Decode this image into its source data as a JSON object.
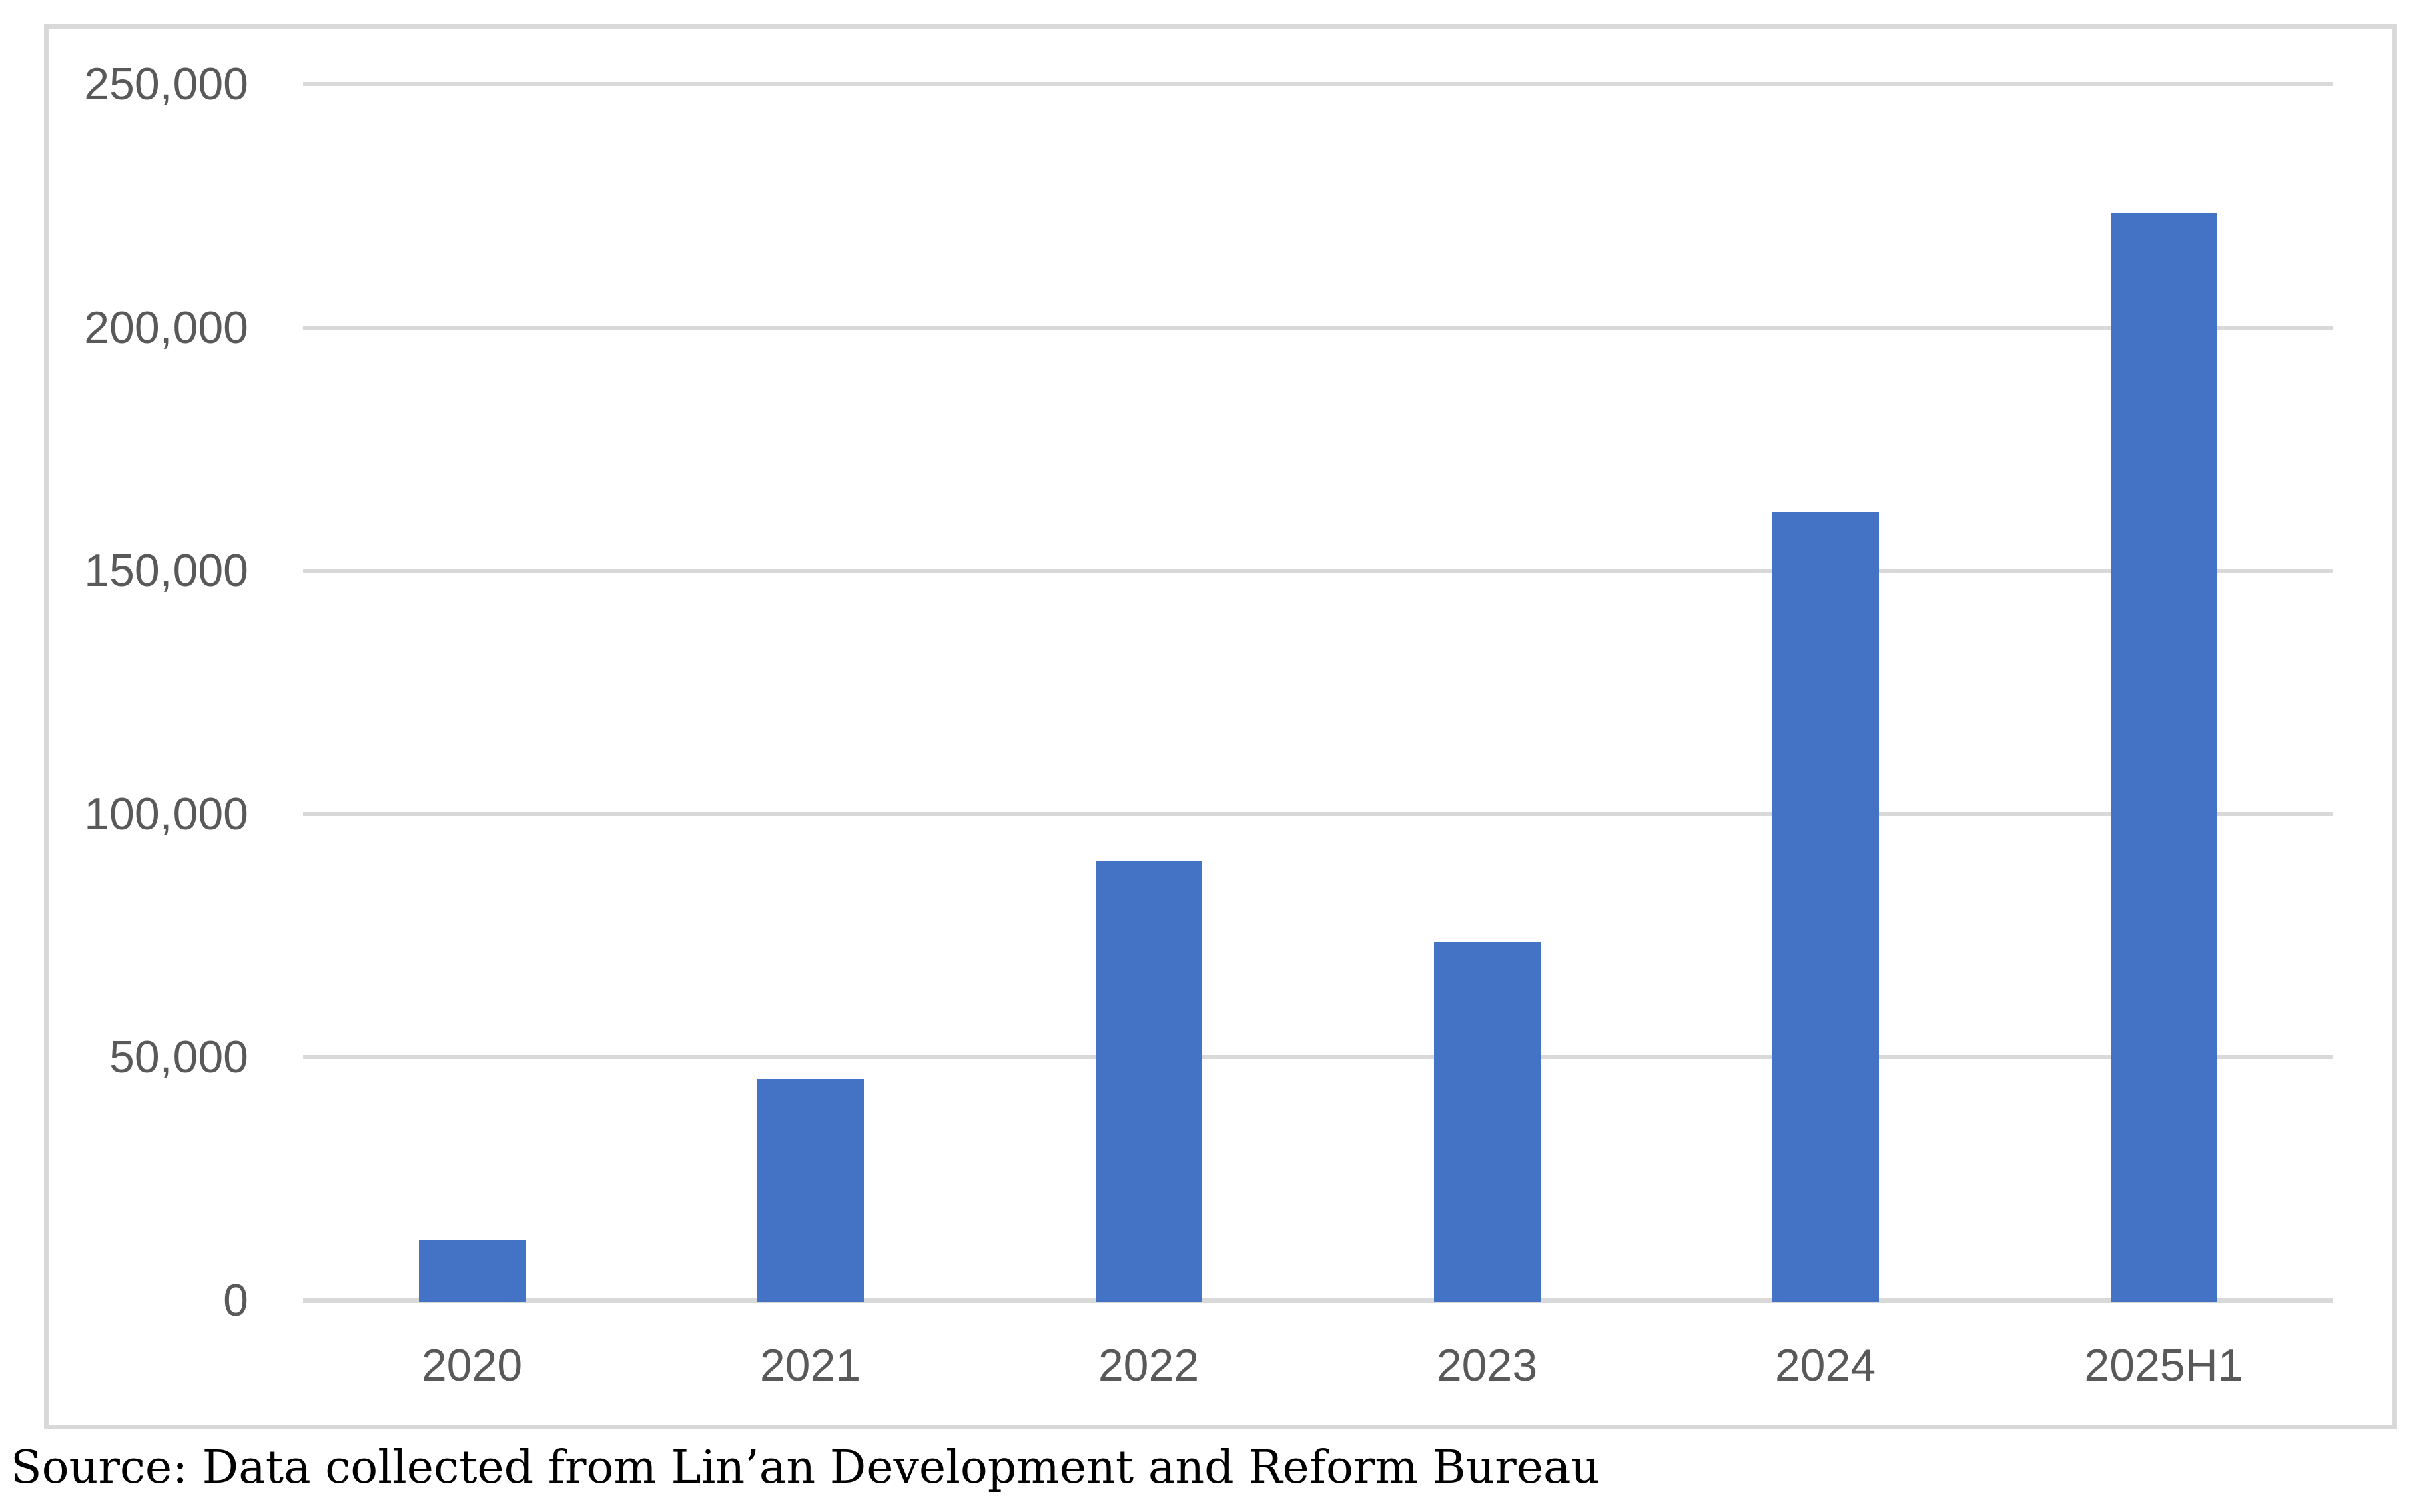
{
  "chart_data": {
    "type": "bar",
    "categories": [
      "2020",
      "2021",
      "2022",
      "2023",
      "2024",
      "2025H1"
    ],
    "values": [
      12500,
      45500,
      90400,
      73600,
      162000,
      223500
    ],
    "title": "",
    "xlabel": "",
    "ylabel": "",
    "ylim": [
      0,
      250000
    ],
    "y_ticks": [
      {
        "value": 0,
        "label": "0"
      },
      {
        "value": 50000,
        "label": "50,000"
      },
      {
        "value": 100000,
        "label": "100,000"
      },
      {
        "value": 150000,
        "label": "150,000"
      },
      {
        "value": 200000,
        "label": "200,000"
      },
      {
        "value": 250000,
        "label": "250,000"
      }
    ],
    "grid": true,
    "legend": false,
    "legend_position": "none",
    "bar_color": "#4472C4",
    "gridline_color": "#D9D9D9",
    "axis_line_color": "#D9D9D9",
    "tick_label_color": "#595959",
    "frame_border_color": "#D9D9D9"
  },
  "source_note": "Source: Data collected from Lin’an Development and Reform Bureau"
}
